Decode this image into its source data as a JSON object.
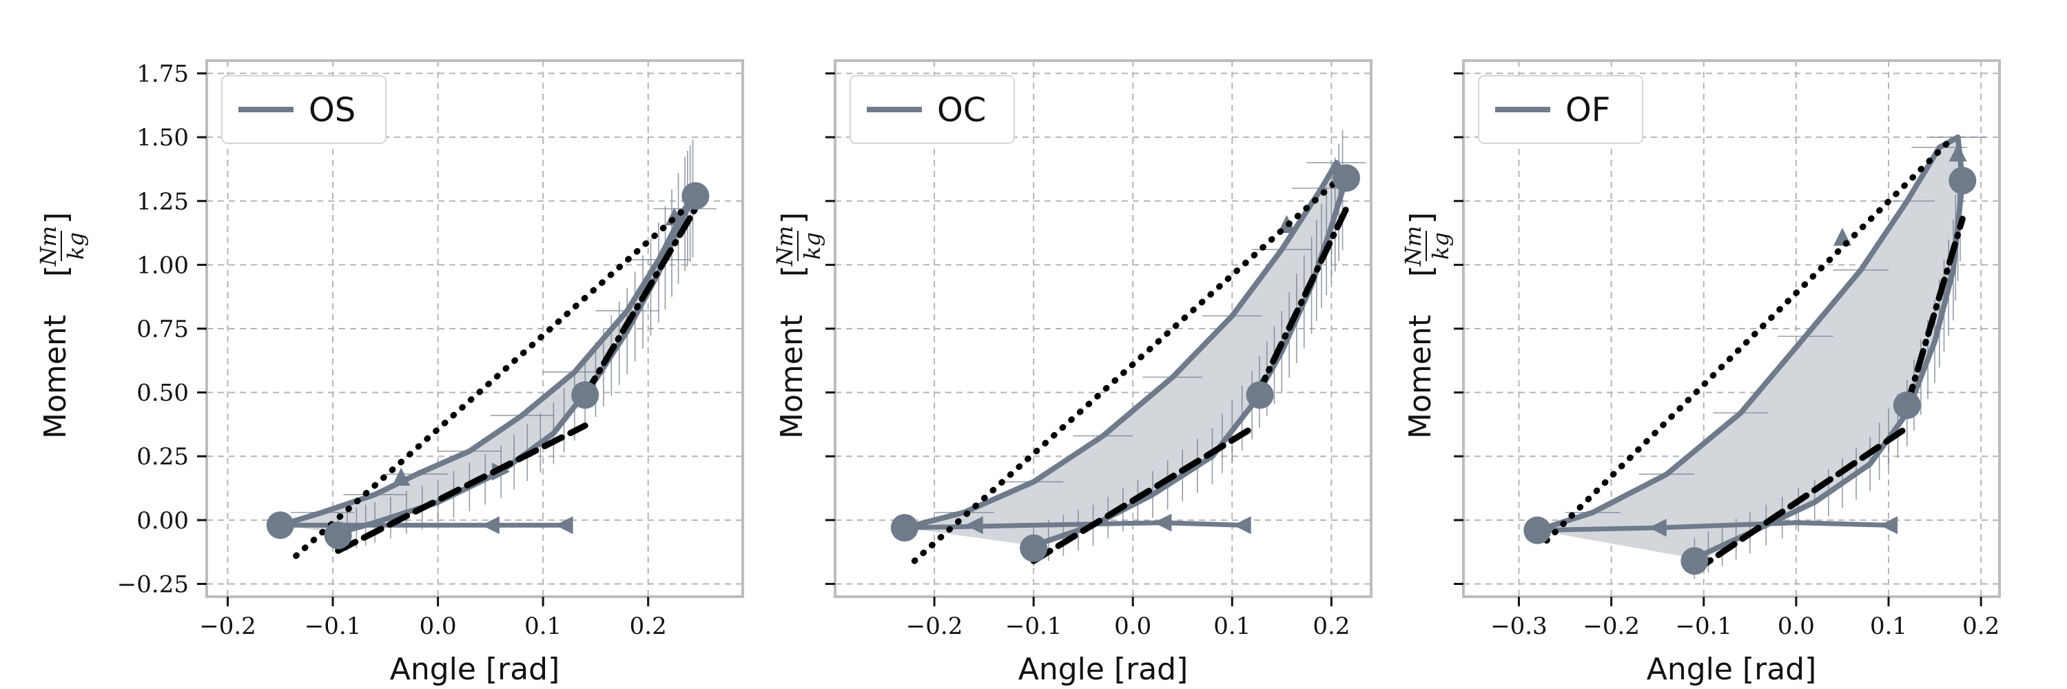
{
  "colors": {
    "series": "#6f7b8b",
    "fill": "#d3d7db",
    "grid": "#b5b5b5",
    "frame": "#bdbdbd",
    "fit": "#000000"
  },
  "chart_data": [
    {
      "type": "line",
      "legend": "OS",
      "legend_position": "top-left",
      "xlabel": "Angle [rad]",
      "ylabel": "Moment",
      "ylabel_unit": "[Nm/kg]",
      "xlim": [
        -0.22,
        0.29
      ],
      "ylim": [
        -0.3,
        1.8
      ],
      "xticks": [
        -0.2,
        -0.1,
        0.0,
        0.1,
        0.2
      ],
      "xtick_labels": [
        "−0.2",
        "−0.1",
        "0.0",
        "0.1",
        "0.2"
      ],
      "yticks": [
        -0.25,
        0,
        0.25,
        0.5,
        0.75,
        1.0,
        1.25,
        1.5,
        1.75
      ],
      "ytick_labels": [
        "−0.25",
        "0.00",
        "0.25",
        "0.50",
        "0.75",
        "1.00",
        "1.25",
        "1.50",
        "1.75"
      ],
      "show_ytick_labels": true,
      "grid": true,
      "upper_curve": [
        [
          -0.15,
          -0.02
        ],
        [
          -0.11,
          0.03
        ],
        [
          -0.06,
          0.1
        ],
        [
          -0.02,
          0.18
        ],
        [
          0.03,
          0.27
        ],
        [
          0.08,
          0.41
        ],
        [
          0.13,
          0.58
        ],
        [
          0.18,
          0.82
        ],
        [
          0.21,
          1.02
        ],
        [
          0.235,
          1.22
        ],
        [
          0.245,
          1.28
        ]
      ],
      "lower_curve": [
        [
          -0.095,
          -0.05
        ],
        [
          -0.06,
          -0.01
        ],
        [
          0.0,
          0.07
        ],
        [
          0.06,
          0.19
        ],
        [
          0.11,
          0.34
        ],
        [
          0.15,
          0.55
        ],
        [
          0.18,
          0.74
        ],
        [
          0.21,
          0.97
        ],
        [
          0.235,
          1.2
        ],
        [
          0.245,
          1.28
        ]
      ],
      "tail": [
        [
          -0.15,
          -0.02
        ],
        [
          -0.05,
          -0.02
        ],
        [
          0.05,
          -0.02
        ],
        [
          0.12,
          -0.02
        ]
      ],
      "tail_markers": [
        [
          0.05,
          -0.02
        ],
        [
          0.12,
          -0.02
        ]
      ],
      "dots": [
        [
          -0.15,
          -0.02
        ],
        [
          -0.095,
          -0.06
        ],
        [
          0.14,
          0.49
        ],
        [
          0.245,
          1.27
        ]
      ],
      "dotted_fit": [
        [
          -0.135,
          -0.14
        ],
        [
          0.235,
          1.22
        ]
      ],
      "dashed_fit": [
        [
          -0.095,
          -0.12
        ],
        [
          0.14,
          0.37
        ]
      ],
      "dashdot_fit": [
        [
          0.14,
          0.49
        ],
        [
          0.245,
          1.22
        ]
      ],
      "markers_upper": [
        [
          -0.035,
          0.17
        ],
        [
          0.225,
          1.19
        ]
      ],
      "markers_lower": [
        [
          0.06,
          0.19
        ]
      ]
    },
    {
      "type": "line",
      "legend": "OC",
      "legend_position": "top-left",
      "xlabel": "Angle [rad]",
      "ylabel": "Moment",
      "ylabel_unit": "[Nm/kg]",
      "xlim": [
        -0.3,
        0.24
      ],
      "ylim": [
        -0.3,
        1.8
      ],
      "xticks": [
        -0.2,
        -0.1,
        0.0,
        0.1,
        0.2
      ],
      "xtick_labels": [
        "−0.2",
        "−0.1",
        "0.0",
        "0.1",
        "0.2"
      ],
      "yticks": [
        -0.25,
        0,
        0.25,
        0.5,
        0.75,
        1.0,
        1.25,
        1.5,
        1.75
      ],
      "ytick_labels": [],
      "show_ytick_labels": false,
      "grid": true,
      "upper_curve": [
        [
          -0.23,
          -0.03
        ],
        [
          -0.17,
          0.03
        ],
        [
          -0.1,
          0.15
        ],
        [
          -0.03,
          0.33
        ],
        [
          0.04,
          0.56
        ],
        [
          0.1,
          0.8
        ],
        [
          0.15,
          1.06
        ],
        [
          0.19,
          1.3
        ],
        [
          0.205,
          1.4
        ],
        [
          0.215,
          1.34
        ]
      ],
      "lower_curve": [
        [
          -0.1,
          -0.1
        ],
        [
          -0.04,
          -0.02
        ],
        [
          0.02,
          0.1
        ],
        [
          0.08,
          0.25
        ],
        [
          0.12,
          0.45
        ],
        [
          0.15,
          0.66
        ],
        [
          0.18,
          0.92
        ],
        [
          0.2,
          1.15
        ],
        [
          0.215,
          1.34
        ]
      ],
      "tail": [
        [
          -0.23,
          -0.03
        ],
        [
          -0.1,
          -0.02
        ],
        [
          0.03,
          -0.01
        ],
        [
          0.11,
          -0.02
        ]
      ],
      "tail_markers": [
        [
          -0.16,
          -0.02
        ],
        [
          0.03,
          -0.01
        ],
        [
          0.11,
          -0.02
        ]
      ],
      "dots": [
        [
          -0.23,
          -0.03
        ],
        [
          -0.1,
          -0.11
        ],
        [
          0.128,
          0.49
        ],
        [
          0.215,
          1.34
        ]
      ],
      "dotted_fit": [
        [
          -0.22,
          -0.16
        ],
        [
          0.22,
          1.38
        ]
      ],
      "dashed_fit": [
        [
          -0.1,
          -0.16
        ],
        [
          0.12,
          0.36
        ]
      ],
      "dashdot_fit": [
        [
          0.125,
          0.49
        ],
        [
          0.215,
          1.22
        ]
      ],
      "markers_upper": [
        [
          0.155,
          1.16
        ]
      ],
      "markers_lower": []
    },
    {
      "type": "line",
      "legend": "OF",
      "legend_position": "top-left",
      "xlabel": "Angle [rad]",
      "ylabel": "Moment",
      "ylabel_unit": "[Nm/kg]",
      "xlim": [
        -0.36,
        0.22
      ],
      "ylim": [
        -0.3,
        1.8
      ],
      "xticks": [
        -0.3,
        -0.2,
        -0.1,
        0.0,
        0.1,
        0.2
      ],
      "xtick_labels": [
        "−0.3",
        "−0.2",
        "−0.1",
        "0.0",
        "0.1",
        "0.2"
      ],
      "yticks": [
        -0.25,
        0,
        0.25,
        0.5,
        0.75,
        1.0,
        1.25,
        1.5,
        1.75
      ],
      "ytick_labels": [],
      "show_ytick_labels": false,
      "grid": true,
      "upper_curve": [
        [
          -0.28,
          -0.04
        ],
        [
          -0.22,
          0.03
        ],
        [
          -0.14,
          0.18
        ],
        [
          -0.06,
          0.42
        ],
        [
          0.01,
          0.72
        ],
        [
          0.07,
          0.98
        ],
        [
          0.12,
          1.25
        ],
        [
          0.155,
          1.46
        ],
        [
          0.175,
          1.5
        ],
        [
          0.18,
          1.33
        ]
      ],
      "lower_curve": [
        [
          -0.11,
          -0.15
        ],
        [
          -0.05,
          -0.05
        ],
        [
          0.02,
          0.07
        ],
        [
          0.08,
          0.22
        ],
        [
          0.12,
          0.42
        ],
        [
          0.15,
          0.7
        ],
        [
          0.17,
          0.98
        ],
        [
          0.18,
          1.33
        ]
      ],
      "tail": [
        [
          -0.28,
          -0.04
        ],
        [
          -0.15,
          -0.03
        ],
        [
          0.0,
          -0.01
        ],
        [
          0.1,
          -0.02
        ]
      ],
      "tail_markers": [
        [
          -0.15,
          -0.03
        ],
        [
          0.1,
          -0.02
        ]
      ],
      "dots": [
        [
          -0.28,
          -0.04
        ],
        [
          -0.11,
          -0.16
        ],
        [
          0.12,
          0.45
        ],
        [
          0.18,
          1.33
        ]
      ],
      "dotted_fit": [
        [
          -0.27,
          -0.08
        ],
        [
          0.17,
          1.5
        ]
      ],
      "dashed_fit": [
        [
          -0.11,
          -0.2
        ],
        [
          0.115,
          0.35
        ]
      ],
      "dashdot_fit": [
        [
          0.12,
          0.45
        ],
        [
          0.18,
          1.18
        ]
      ],
      "markers_upper": [
        [
          0.05,
          1.11
        ],
        [
          0.175,
          1.44
        ]
      ],
      "markers_lower": []
    }
  ]
}
